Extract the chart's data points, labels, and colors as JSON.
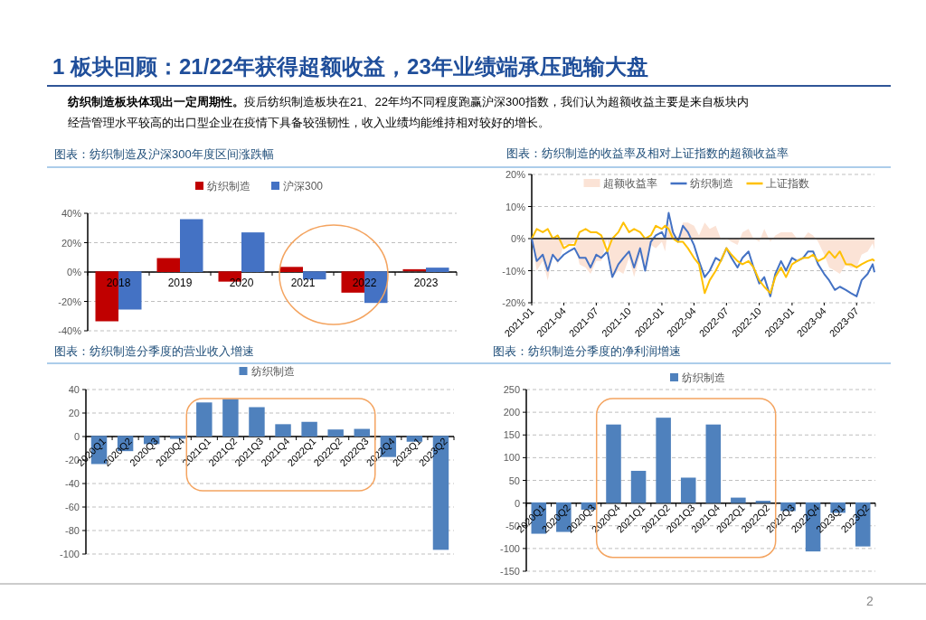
{
  "chart_data": [
    {
      "type": "other",
      "title": "1 板块回顾：21/22年获得超额收益，23年业绩端承压跑输大盘",
      "annotations": [
        "纺织制造板块体现出一定周期性。",
        "疫后纺织制造板块在21、22年均不同程度跑赢沪深300指数，我们认为超额收益主要是来自板块内",
        "经营管理水平较高的出口型企业在疫情下具备较强韧性，收入业绩均能维持相对较好的增长。",
        "2"
      ]
    },
    {
      "type": "bar",
      "title": "图表：纺织制造及沪深300年度区间涨跌幅",
      "categories": [
        "2018",
        "2019",
        "2020",
        "2021",
        "2022",
        "2023"
      ],
      "series": [
        {
          "name": "纺织制造",
          "color": "#c00000",
          "values": [
            -34,
            9.5,
            -7,
            3.5,
            -14.5,
            1
          ]
        },
        {
          "name": "沪深300",
          "color": "#4472c4",
          "values": [
            -26,
            36,
            27,
            -5.5,
            -21.5,
            3
          ]
        }
      ],
      "ylim": [
        -40,
        40
      ],
      "yticks": [
        {
          "value": -40,
          "label": "-40%"
        },
        {
          "value": -20,
          "label": "-20%"
        },
        {
          "value": 0,
          "label": "0%"
        },
        {
          "value": 20,
          "label": "20%"
        },
        {
          "value": 40,
          "label": "40%"
        }
      ],
      "grid": "y",
      "legend": "top"
    },
    {
      "type": "line",
      "title": "图表：纺织制造的收益率及相对上证指数的超额收益率",
      "x": [
        "2021-01-01",
        "2021-01-15",
        "2021-02-01",
        "2021-02-15",
        "2021-03-01",
        "2021-03-15",
        "2021-04-01",
        "2021-04-15",
        "2021-05-01",
        "2021-05-15",
        "2021-06-01",
        "2021-06-15",
        "2021-07-01",
        "2021-07-15",
        "2021-08-01",
        "2021-08-15",
        "2021-09-01",
        "2021-09-15",
        "2021-10-01",
        "2021-10-15",
        "2021-11-01",
        "2021-11-15",
        "2021-12-01",
        "2021-12-15",
        "2022-01-01",
        "2022-01-10",
        "2022-01-20",
        "2022-02-01",
        "2022-02-15",
        "2022-03-01",
        "2022-03-15",
        "2022-04-01",
        "2022-04-15",
        "2022-05-01",
        "2022-05-15",
        "2022-06-01",
        "2022-06-15",
        "2022-07-01",
        "2022-07-15",
        "2022-08-01",
        "2022-08-15",
        "2022-09-01",
        "2022-09-15",
        "2022-10-01",
        "2022-10-15",
        "2022-11-01",
        "2022-11-15",
        "2022-12-01",
        "2022-12-15",
        "2023-01-01",
        "2023-01-15",
        "2023-02-01",
        "2023-02-15",
        "2023-03-01",
        "2023-03-15",
        "2023-04-01",
        "2023-04-15",
        "2023-05-01",
        "2023-05-15",
        "2023-06-01",
        "2023-06-15",
        "2023-07-01",
        "2023-07-15",
        "2023-08-01",
        "2023-08-15",
        "2023-08-20"
      ],
      "series": [
        {
          "name": "超额收益率",
          "type": "area",
          "color": "#fbe3d6",
          "values": [
            0,
            -10,
            -7,
            -13,
            -5,
            -8,
            -2,
            -2,
            -1,
            -8,
            -9,
            -11,
            -7,
            -7,
            0,
            -12,
            -10,
            -11,
            -6,
            -12,
            -5,
            -10,
            -2,
            -3,
            -1,
            -4,
            5,
            2,
            0,
            5,
            5,
            4,
            1,
            5,
            3,
            4,
            0,
            0,
            -1,
            -2,
            2,
            3,
            0,
            -1,
            3,
            -1,
            1,
            2,
            2,
            2,
            0,
            0,
            2,
            1,
            -1,
            -5,
            -9,
            -10,
            -11,
            -8,
            -9,
            -9,
            -5,
            -4,
            -1.5,
            -3.5
          ]
        },
        {
          "name": "纺织制造",
          "type": "line",
          "color": "#4472c4",
          "values": [
            0,
            -7,
            -5,
            -10,
            -5,
            -7,
            -5,
            -4,
            -3,
            -6,
            -6,
            -9,
            -5,
            -6,
            -4,
            -12,
            -8,
            -6,
            -4,
            -9,
            -3,
            -10,
            -1,
            1,
            2,
            0,
            8,
            2,
            -1,
            4,
            2,
            -2,
            -7,
            -12,
            -10,
            -6,
            -7,
            -3,
            -6,
            -9,
            -6,
            -4,
            -9,
            -14,
            -12,
            -18,
            -11,
            -7,
            -10,
            -6,
            -7,
            -6,
            -4,
            -4,
            -8,
            -11,
            -13,
            -16,
            -15,
            -16,
            -17,
            -18,
            -13,
            -11,
            -8,
            -10.5
          ]
        },
        {
          "name": "上证指数",
          "type": "line",
          "color": "#ffc000",
          "values": [
            0,
            3,
            2,
            3,
            0,
            1,
            -3,
            -2,
            -2,
            2,
            3,
            2,
            2,
            1,
            -4,
            0,
            2,
            5,
            2,
            3,
            2,
            0,
            1,
            4,
            3,
            4,
            3,
            0,
            -1,
            -1,
            -3,
            -6,
            -8,
            -17,
            -13,
            -10,
            -7,
            -3,
            -5,
            -7,
            -8,
            -7,
            -9,
            -13,
            -15,
            -17,
            -12,
            -9,
            -12,
            -8,
            -7,
            -6,
            -6,
            -5,
            -7,
            -6,
            -4,
            -6,
            -4,
            -8,
            -8,
            -9,
            -8,
            -7,
            -6.5,
            -7
          ]
        }
      ],
      "xlim": [
        "2021-01-01",
        "2023-08-20"
      ],
      "xticks": [
        "2021-01",
        "2021-04",
        "2021-07",
        "2021-10",
        "2022-01",
        "2022-04",
        "2022-07",
        "2022-10",
        "2023-01",
        "2023-04",
        "2023-07"
      ],
      "ylim": [
        -20,
        20
      ],
      "yticks": [
        {
          "value": -20,
          "label": "-20%"
        },
        {
          "value": -10,
          "label": "-10%"
        },
        {
          "value": 0,
          "label": "0%"
        },
        {
          "value": 10,
          "label": "10%"
        },
        {
          "value": 20,
          "label": "20%"
        }
      ],
      "grid": "y",
      "legend": "top"
    },
    {
      "type": "bar",
      "title": "图表：纺织制造分季度的营业收入增速",
      "categories": [
        "2020Q1",
        "2020Q2",
        "2020Q3",
        "2020Q4",
        "2021Q1",
        "2021Q2",
        "2021Q3",
        "2021Q4",
        "2022Q1",
        "2022Q2",
        "2022Q3",
        "2022Q4",
        "2023Q1",
        "2023Q2"
      ],
      "series": [
        {
          "name": "纺织制造",
          "color": "#4f81bd",
          "values": [
            -24,
            -13,
            -7,
            -2.5,
            29,
            32,
            25,
            10.5,
            12.5,
            6,
            6.5,
            -18,
            -5,
            -97
          ]
        }
      ],
      "ylim": [
        -100,
        40
      ],
      "yticks": [
        -100,
        -80,
        -60,
        -40,
        -20,
        0,
        20,
        40
      ],
      "grid": "y",
      "legend": "top"
    },
    {
      "type": "bar",
      "title": "图表：纺织制造分季度的净利润增速",
      "categories": [
        "2020Q1",
        "2020Q2",
        "2020Q3",
        "2020Q4",
        "2021Q1",
        "2021Q2",
        "2021Q3",
        "2021Q4",
        "2022Q1",
        "2022Q2",
        "2022Q3",
        "2022Q4",
        "2023Q1",
        "2023Q2"
      ],
      "series": [
        {
          "name": "纺织制造",
          "color": "#4f81bd",
          "values": [
            -69,
            -65,
            -16,
            173,
            71,
            188,
            56,
            173,
            12,
            5,
            -19,
            -108,
            -23,
            -97
          ]
        }
      ],
      "ylim": [
        -150,
        250
      ],
      "yticks": [
        -150,
        -100,
        -50,
        0,
        50,
        100,
        150,
        200,
        250
      ],
      "grid": "y",
      "legend": "top"
    }
  ]
}
